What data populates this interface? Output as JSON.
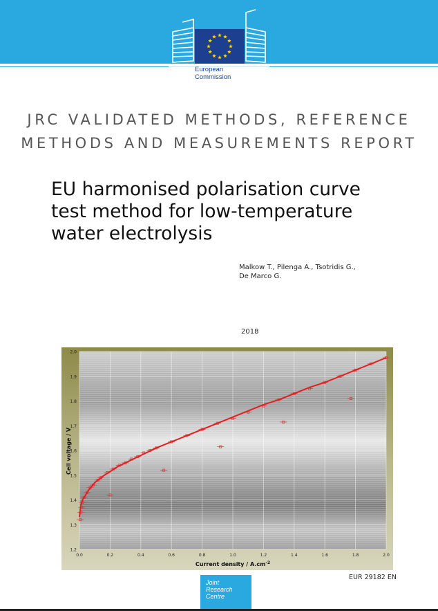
{
  "header": {
    "logo_text_line1": "European",
    "logo_text_line2": "Commission",
    "band_color": "#2aa8e0",
    "flag_color": "#1c3f8f",
    "star_color": "#ffd617",
    "logo_icon": "eu-flag-building-icon"
  },
  "series": {
    "line1": "JRC VALIDATED METHODS, REFERENCE",
    "line2": "METHODS AND MEASUREMENTS REPORT"
  },
  "title": {
    "line1": "EU harmonised polarisation curve",
    "line2": "test method for low-temperature",
    "line3": "water electrolysis"
  },
  "authors": {
    "line1": "Malkow T., Pilenga A., Tsotridis G.,",
    "line2": "De Marco G."
  },
  "year": "2018",
  "chart_data": {
    "type": "line",
    "title": "",
    "xlabel": "Current density / A.cm",
    "xlabel_superscript": "-2",
    "ylabel": "Cell voltage / V",
    "xlim": [
      0,
      2.0
    ],
    "ylim": [
      1.2,
      2.0
    ],
    "xticks": [
      "0.0",
      "0.2",
      "0.4",
      "0.6",
      "0.8",
      "1.0",
      "1.2",
      "1.4",
      "1.6",
      "1.8",
      "2.0"
    ],
    "yticks": [
      "1.2",
      "1.3",
      "1.4",
      "1.5",
      "1.6",
      "1.7",
      "1.8",
      "1.9",
      "2.0"
    ],
    "grid": true,
    "line_color": "#e02020",
    "series": [
      {
        "x": [
          0.0,
          0.005,
          0.01,
          0.02,
          0.04,
          0.06,
          0.08,
          0.1,
          0.15,
          0.2,
          0.25,
          0.3,
          0.35,
          0.4,
          0.5,
          0.6,
          0.7,
          0.8,
          0.9,
          1.0,
          1.1,
          1.2,
          1.3,
          1.4,
          1.5,
          1.6,
          1.7,
          1.8,
          1.9,
          2.0
        ],
        "y": [
          1.33,
          1.36,
          1.38,
          1.4,
          1.42,
          1.44,
          1.455,
          1.47,
          1.495,
          1.515,
          1.535,
          1.55,
          1.565,
          1.58,
          1.61,
          1.635,
          1.66,
          1.685,
          1.71,
          1.735,
          1.76,
          1.785,
          1.805,
          1.83,
          1.855,
          1.875,
          1.9,
          1.925,
          1.95,
          1.975
        ]
      }
    ],
    "markers": [
      {
        "x": 0.005,
        "y": 1.32
      },
      {
        "x": 0.01,
        "y": 1.35
      },
      {
        "x": 0.015,
        "y": 1.37
      },
      {
        "x": 0.02,
        "y": 1.39
      },
      {
        "x": 0.03,
        "y": 1.41
      },
      {
        "x": 0.05,
        "y": 1.43
      },
      {
        "x": 0.07,
        "y": 1.45
      },
      {
        "x": 0.09,
        "y": 1.46
      },
      {
        "x": 0.12,
        "y": 1.48
      },
      {
        "x": 0.14,
        "y": 1.49
      },
      {
        "x": 0.18,
        "y": 1.51
      },
      {
        "x": 0.22,
        "y": 1.525
      },
      {
        "x": 0.26,
        "y": 1.54
      },
      {
        "x": 0.3,
        "y": 1.55
      },
      {
        "x": 0.34,
        "y": 1.565
      },
      {
        "x": 0.38,
        "y": 1.575
      },
      {
        "x": 0.42,
        "y": 1.59
      },
      {
        "x": 0.46,
        "y": 1.6
      },
      {
        "x": 0.5,
        "y": 1.61
      },
      {
        "x": 0.6,
        "y": 1.635
      },
      {
        "x": 0.7,
        "y": 1.66
      },
      {
        "x": 0.8,
        "y": 1.685
      },
      {
        "x": 0.9,
        "y": 1.71
      },
      {
        "x": 1.0,
        "y": 1.73
      },
      {
        "x": 1.1,
        "y": 1.755
      },
      {
        "x": 1.2,
        "y": 1.78
      },
      {
        "x": 1.3,
        "y": 1.805
      },
      {
        "x": 1.4,
        "y": 1.83
      },
      {
        "x": 1.5,
        "y": 1.85
      },
      {
        "x": 1.6,
        "y": 1.875
      },
      {
        "x": 1.7,
        "y": 1.9
      },
      {
        "x": 1.8,
        "y": 1.925
      },
      {
        "x": 1.9,
        "y": 1.95
      },
      {
        "x": 2.0,
        "y": 1.975
      },
      {
        "x": 0.2,
        "y": 1.42
      },
      {
        "x": 0.55,
        "y": 1.52
      },
      {
        "x": 0.92,
        "y": 1.615
      },
      {
        "x": 1.33,
        "y": 1.715
      },
      {
        "x": 1.77,
        "y": 1.81
      }
    ]
  },
  "report_number": "EUR 29182 EN",
  "jrc_logo": {
    "line1": "Joint",
    "line2": "Research",
    "line3": "Centre"
  }
}
